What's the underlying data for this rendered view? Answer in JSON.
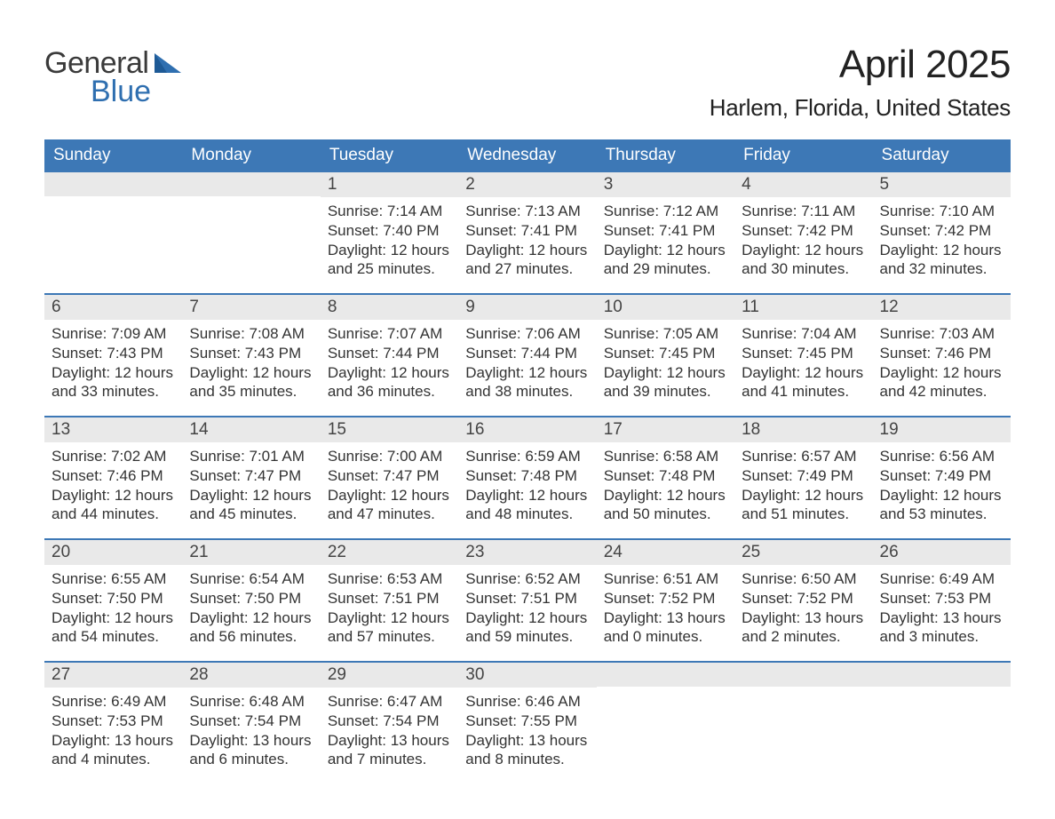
{
  "brand": {
    "word1": "General",
    "word2": "Blue"
  },
  "title": "April 2025",
  "subtitle": "Harlem, Florida, United States",
  "colors": {
    "header_bg": "#3d78b6",
    "header_text": "#ffffff",
    "daynum_bg": "#e9e9e9",
    "week_border": "#3d78b6",
    "body_text": "#333333",
    "brand_gray": "#3a3a3a",
    "brand_blue": "#2f6fb0",
    "page_bg": "#ffffff"
  },
  "fonts": {
    "title_size_pt": 33,
    "subtitle_size_pt": 20,
    "dow_size_pt": 14,
    "daynum_size_pt": 14,
    "body_size_pt": 13
  },
  "days_of_week": [
    "Sunday",
    "Monday",
    "Tuesday",
    "Wednesday",
    "Thursday",
    "Friday",
    "Saturday"
  ],
  "weeks": [
    [
      {
        "n": "",
        "sunrise": "",
        "sunset": "",
        "daylight": ""
      },
      {
        "n": "",
        "sunrise": "",
        "sunset": "",
        "daylight": ""
      },
      {
        "n": "1",
        "sunrise": "7:14 AM",
        "sunset": "7:40 PM",
        "daylight": "12 hours and 25 minutes."
      },
      {
        "n": "2",
        "sunrise": "7:13 AM",
        "sunset": "7:41 PM",
        "daylight": "12 hours and 27 minutes."
      },
      {
        "n": "3",
        "sunrise": "7:12 AM",
        "sunset": "7:41 PM",
        "daylight": "12 hours and 29 minutes."
      },
      {
        "n": "4",
        "sunrise": "7:11 AM",
        "sunset": "7:42 PM",
        "daylight": "12 hours and 30 minutes."
      },
      {
        "n": "5",
        "sunrise": "7:10 AM",
        "sunset": "7:42 PM",
        "daylight": "12 hours and 32 minutes."
      }
    ],
    [
      {
        "n": "6",
        "sunrise": "7:09 AM",
        "sunset": "7:43 PM",
        "daylight": "12 hours and 33 minutes."
      },
      {
        "n": "7",
        "sunrise": "7:08 AM",
        "sunset": "7:43 PM",
        "daylight": "12 hours and 35 minutes."
      },
      {
        "n": "8",
        "sunrise": "7:07 AM",
        "sunset": "7:44 PM",
        "daylight": "12 hours and 36 minutes."
      },
      {
        "n": "9",
        "sunrise": "7:06 AM",
        "sunset": "7:44 PM",
        "daylight": "12 hours and 38 minutes."
      },
      {
        "n": "10",
        "sunrise": "7:05 AM",
        "sunset": "7:45 PM",
        "daylight": "12 hours and 39 minutes."
      },
      {
        "n": "11",
        "sunrise": "7:04 AM",
        "sunset": "7:45 PM",
        "daylight": "12 hours and 41 minutes."
      },
      {
        "n": "12",
        "sunrise": "7:03 AM",
        "sunset": "7:46 PM",
        "daylight": "12 hours and 42 minutes."
      }
    ],
    [
      {
        "n": "13",
        "sunrise": "7:02 AM",
        "sunset": "7:46 PM",
        "daylight": "12 hours and 44 minutes."
      },
      {
        "n": "14",
        "sunrise": "7:01 AM",
        "sunset": "7:47 PM",
        "daylight": "12 hours and 45 minutes."
      },
      {
        "n": "15",
        "sunrise": "7:00 AM",
        "sunset": "7:47 PM",
        "daylight": "12 hours and 47 minutes."
      },
      {
        "n": "16",
        "sunrise": "6:59 AM",
        "sunset": "7:48 PM",
        "daylight": "12 hours and 48 minutes."
      },
      {
        "n": "17",
        "sunrise": "6:58 AM",
        "sunset": "7:48 PM",
        "daylight": "12 hours and 50 minutes."
      },
      {
        "n": "18",
        "sunrise": "6:57 AM",
        "sunset": "7:49 PM",
        "daylight": "12 hours and 51 minutes."
      },
      {
        "n": "19",
        "sunrise": "6:56 AM",
        "sunset": "7:49 PM",
        "daylight": "12 hours and 53 minutes."
      }
    ],
    [
      {
        "n": "20",
        "sunrise": "6:55 AM",
        "sunset": "7:50 PM",
        "daylight": "12 hours and 54 minutes."
      },
      {
        "n": "21",
        "sunrise": "6:54 AM",
        "sunset": "7:50 PM",
        "daylight": "12 hours and 56 minutes."
      },
      {
        "n": "22",
        "sunrise": "6:53 AM",
        "sunset": "7:51 PM",
        "daylight": "12 hours and 57 minutes."
      },
      {
        "n": "23",
        "sunrise": "6:52 AM",
        "sunset": "7:51 PM",
        "daylight": "12 hours and 59 minutes."
      },
      {
        "n": "24",
        "sunrise": "6:51 AM",
        "sunset": "7:52 PM",
        "daylight": "13 hours and 0 minutes."
      },
      {
        "n": "25",
        "sunrise": "6:50 AM",
        "sunset": "7:52 PM",
        "daylight": "13 hours and 2 minutes."
      },
      {
        "n": "26",
        "sunrise": "6:49 AM",
        "sunset": "7:53 PM",
        "daylight": "13 hours and 3 minutes."
      }
    ],
    [
      {
        "n": "27",
        "sunrise": "6:49 AM",
        "sunset": "7:53 PM",
        "daylight": "13 hours and 4 minutes."
      },
      {
        "n": "28",
        "sunrise": "6:48 AM",
        "sunset": "7:54 PM",
        "daylight": "13 hours and 6 minutes."
      },
      {
        "n": "29",
        "sunrise": "6:47 AM",
        "sunset": "7:54 PM",
        "daylight": "13 hours and 7 minutes."
      },
      {
        "n": "30",
        "sunrise": "6:46 AM",
        "sunset": "7:55 PM",
        "daylight": "13 hours and 8 minutes."
      },
      {
        "n": "",
        "sunrise": "",
        "sunset": "",
        "daylight": ""
      },
      {
        "n": "",
        "sunrise": "",
        "sunset": "",
        "daylight": ""
      },
      {
        "n": "",
        "sunrise": "",
        "sunset": "",
        "daylight": ""
      }
    ]
  ],
  "labels": {
    "sunrise_prefix": "Sunrise: ",
    "sunset_prefix": "Sunset: ",
    "daylight_prefix": "Daylight: "
  }
}
